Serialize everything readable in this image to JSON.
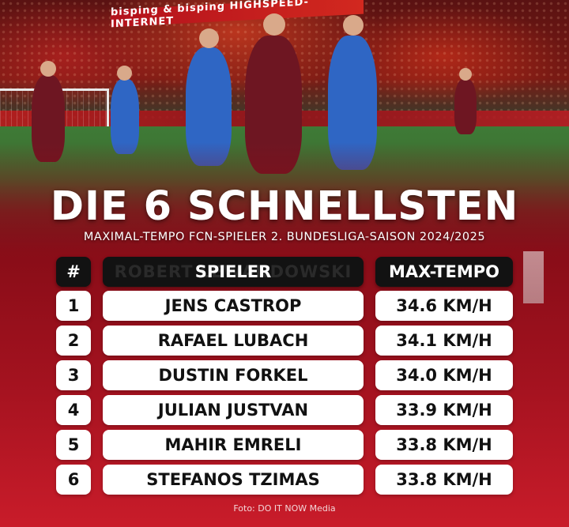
{
  "photo": {
    "banner_text": "bisping & bisping  HIGHSPEED-INTERNET"
  },
  "header": {
    "title": "DIE 6 SCHNELLSTEN",
    "subtitle": "MAXIMAL-TEMPO FCN-SPIELER 2. BUNDESLIGA-SAISON 2024/2025"
  },
  "table": {
    "columns": {
      "rank": "#",
      "player": "SPIELER",
      "speed": "MAX-TEMPO"
    },
    "header_ghost_text": "ROBERT LEWANDOWSKI",
    "rows": [
      {
        "rank": "1",
        "name": "JENS CASTROP",
        "speed": "34.6 KM/H"
      },
      {
        "rank": "2",
        "name": "RAFAEL LUBACH",
        "speed": "34.1 KM/H"
      },
      {
        "rank": "3",
        "name": "DUSTIN FORKEL",
        "speed": "34.0 KM/H"
      },
      {
        "rank": "4",
        "name": "JULIAN JUSTVAN",
        "speed": "33.9 KM/H"
      },
      {
        "rank": "5",
        "name": "MAHIR EMRELI",
        "speed": "33.8 KM/H"
      },
      {
        "rank": "6",
        "name": "STEFANOS TZIMAS",
        "speed": "33.8 KM/H"
      }
    ]
  },
  "footer": {
    "credit": "Foto: DO IT NOW Media"
  },
  "colors": {
    "background_red": "#a3121f",
    "header_black": "#121212",
    "cell_white": "#ffffff",
    "home_kit": "#6e1622",
    "away_kit": "#2f66c4"
  }
}
